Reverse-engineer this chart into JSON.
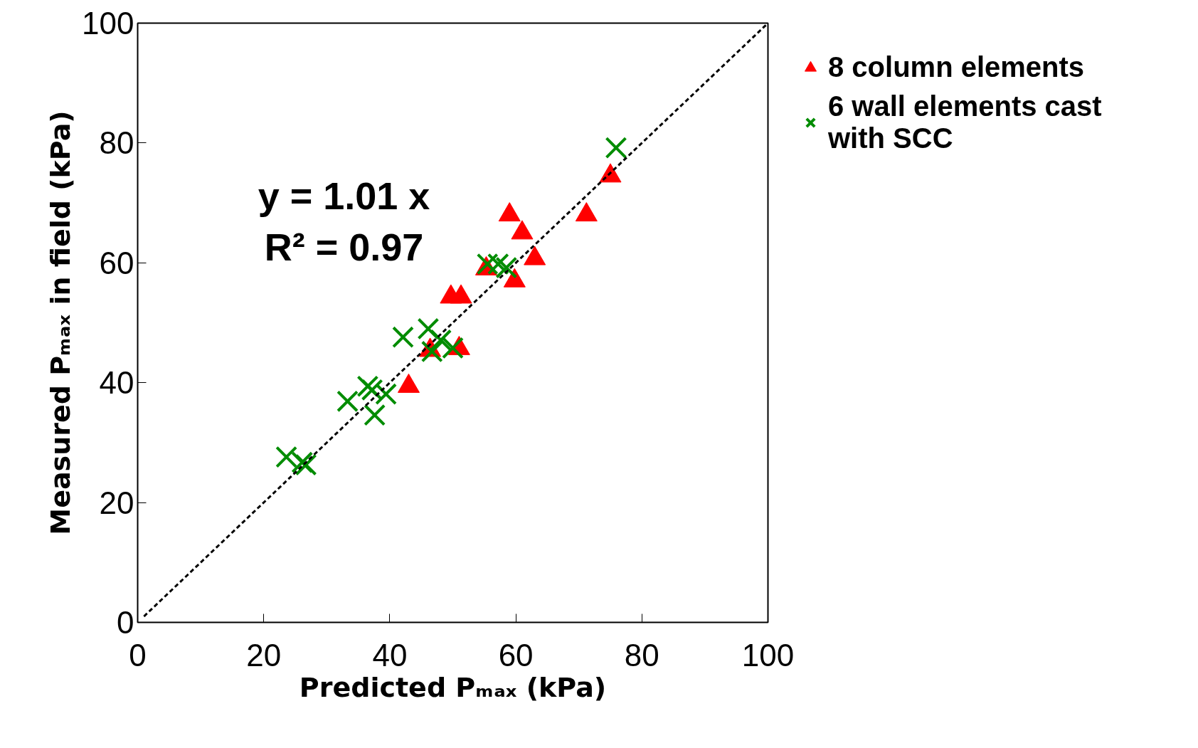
{
  "chart_data": {
    "type": "scatter",
    "xlabel": "Predicted Pₘₐₓ (kPa)",
    "ylabel": "Measured Pₘₐₓ in field (kPa)",
    "xlim": [
      0,
      100
    ],
    "ylim": [
      0,
      100
    ],
    "xticks": [
      0,
      20,
      40,
      60,
      80,
      100
    ],
    "yticks": [
      0,
      20,
      40,
      60,
      80,
      100
    ],
    "grid": false,
    "legend": "right",
    "series": [
      {
        "name": "8 column elements",
        "color": "#ff0000",
        "marker": "triangle",
        "x": [
          75,
          71.2,
          59,
          61,
          63,
          59.8,
          55.3,
          49.7,
          51.3,
          51,
          46.4,
          43
        ],
        "values": [
          74.5,
          68,
          68,
          65,
          60.7,
          57,
          59,
          54.3,
          54.3,
          45.7,
          45.4,
          39.4
        ]
      },
      {
        "name": "6 wall elements cast with SCC",
        "color": "#008c00",
        "marker": "cross",
        "x": [
          75.9,
          55.5,
          57.2,
          58.5,
          42.1,
          46.1,
          48.1,
          46.7,
          50,
          33.3,
          36.5,
          37.2,
          39.4,
          37.6,
          23.6,
          26.1,
          26.7
        ],
        "values": [
          79.2,
          59.8,
          59.8,
          59.2,
          47.6,
          49,
          47.1,
          45.2,
          45.8,
          36.9,
          39.4,
          38.8,
          38.1,
          34.6,
          27.6,
          26.7,
          26.3
        ]
      },
      {
        "type": "line",
        "color": "#000000",
        "line_style": "dashed",
        "marker": "none",
        "x": [
          1,
          100
        ],
        "values": [
          1,
          100
        ]
      }
    ],
    "annotations": [
      "y = 1.01 x",
      "R² = 0.97"
    ]
  }
}
